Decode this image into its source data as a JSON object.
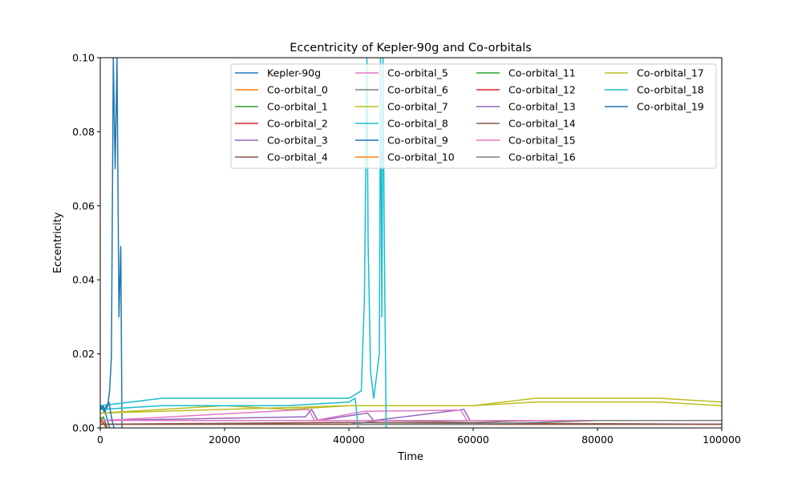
{
  "chart_data": {
    "type": "line",
    "title": "Eccentricity of Kepler-90g and Co-orbitals",
    "xlabel": "Time",
    "ylabel": "Eccentricity",
    "xlim": [
      0,
      100000
    ],
    "ylim": [
      0,
      0.1
    ],
    "xticks": [
      0,
      20000,
      40000,
      60000,
      80000,
      100000
    ],
    "xtick_labels": [
      "0",
      "20000",
      "40000",
      "60000",
      "80000",
      "100000"
    ],
    "yticks": [
      0,
      0.02,
      0.04,
      0.06,
      0.08,
      0.1
    ],
    "ytick_labels": [
      "0.00",
      "0.02",
      "0.04",
      "0.06",
      "0.08",
      "0.10"
    ],
    "grid": false,
    "legend_position": "top-right",
    "legend_columns": 4,
    "series": [
      {
        "name": "Kepler-90g",
        "color": "#1f77b4",
        "values": [
          [
            0,
            0.005
          ],
          [
            300,
            0.0055
          ],
          [
            700,
            0.004
          ],
          [
            1200,
            0.006
          ],
          [
            1500,
            0.01
          ],
          [
            1800,
            0.019
          ],
          [
            2100,
            0.1
          ],
          [
            2400,
            0.07
          ],
          [
            2700,
            0.1
          ],
          [
            3000,
            0.03
          ],
          [
            3300,
            0.049
          ],
          [
            3500,
            0.0
          ]
        ]
      },
      {
        "name": "Co-orbital_0",
        "color": "#ff7f0e",
        "values": [
          [
            0,
            0.003
          ],
          [
            400,
            0.002
          ],
          [
            800,
            0.001
          ],
          [
            1000,
            0.0
          ]
        ]
      },
      {
        "name": "Co-orbital_1",
        "color": "#2ca02c",
        "values": [
          [
            0,
            0.002
          ],
          [
            500,
            0.003
          ],
          [
            900,
            0.001
          ],
          [
            1100,
            0.0
          ]
        ]
      },
      {
        "name": "Co-orbital_2",
        "color": "#d62728",
        "values": [
          [
            0,
            0.002
          ],
          [
            600,
            0.001
          ],
          [
            1000,
            0.0
          ]
        ]
      },
      {
        "name": "Co-orbital_3",
        "color": "#9467bd",
        "values": [
          [
            0,
            0.002
          ],
          [
            33000,
            0.003
          ],
          [
            34000,
            0.005
          ],
          [
            35000,
            0.002
          ],
          [
            43000,
            0.004
          ],
          [
            44000,
            0.002
          ],
          [
            58500,
            0.005
          ],
          [
            59500,
            0.002
          ]
        ]
      },
      {
        "name": "Co-orbital_4",
        "color": "#8c564b",
        "values": [
          [
            0,
            0.001
          ],
          [
            40000,
            0.0015
          ],
          [
            100000,
            0.001
          ]
        ]
      },
      {
        "name": "Co-orbital_5",
        "color": "#e377c2",
        "values": [
          [
            0,
            0.002
          ],
          [
            33500,
            0.005
          ],
          [
            34500,
            0.002
          ],
          [
            42500,
            0.0045
          ],
          [
            58000,
            0.0048
          ],
          [
            59000,
            0.002
          ],
          [
            100000,
            0.002
          ]
        ]
      },
      {
        "name": "Co-orbital_6",
        "color": "#7f7f7f",
        "values": [
          [
            40000,
            0.001
          ],
          [
            45000,
            0.002
          ],
          [
            60000,
            0.0015
          ],
          [
            70000,
            0.002
          ],
          [
            80000,
            0.002
          ],
          [
            90000,
            0.002
          ],
          [
            100000,
            0.002
          ]
        ]
      },
      {
        "name": "Co-orbital_7",
        "color": "#bcbd22",
        "values": [
          [
            0,
            0.004
          ],
          [
            10000,
            0.005
          ],
          [
            20000,
            0.006
          ],
          [
            30000,
            0.005
          ],
          [
            40000,
            0.006
          ],
          [
            50000,
            0.006
          ],
          [
            60000,
            0.006
          ],
          [
            70000,
            0.007
          ],
          [
            80000,
            0.007
          ],
          [
            90000,
            0.007
          ],
          [
            100000,
            0.006
          ]
        ]
      },
      {
        "name": "Co-orbital_8",
        "color": "#17becf",
        "values": [
          [
            0,
            0.005
          ],
          [
            10000,
            0.006
          ],
          [
            20000,
            0.006
          ],
          [
            30000,
            0.006
          ],
          [
            40000,
            0.007
          ],
          [
            41000,
            0.008
          ],
          [
            41500,
            0.0
          ]
        ]
      },
      {
        "name": "Co-orbital_9",
        "color": "#1f77b4",
        "values": [
          [
            0,
            0.005
          ],
          [
            500,
            0.006
          ],
          [
            1000,
            0.003
          ],
          [
            1500,
            0.0
          ]
        ]
      },
      {
        "name": "Co-orbital_10",
        "color": "#ff7f0e",
        "values": [
          [
            0,
            0.001
          ],
          [
            100000,
            0.001
          ]
        ]
      },
      {
        "name": "Co-orbital_11",
        "color": "#2ca02c",
        "values": [
          [
            0,
            0.001
          ],
          [
            100000,
            0.001
          ]
        ]
      },
      {
        "name": "Co-orbital_12",
        "color": "#d62728",
        "values": [
          [
            0,
            0.001
          ],
          [
            100000,
            0.001
          ]
        ]
      },
      {
        "name": "Co-orbital_13",
        "color": "#9467bd",
        "values": [
          [
            0,
            0.001
          ],
          [
            100000,
            0.001
          ]
        ]
      },
      {
        "name": "Co-orbital_14",
        "color": "#8c564b",
        "values": [
          [
            0,
            0.001
          ],
          [
            100000,
            0.001
          ]
        ]
      },
      {
        "name": "Co-orbital_15",
        "color": "#e377c2",
        "values": [
          [
            0,
            0.002
          ],
          [
            100000,
            0.002
          ]
        ]
      },
      {
        "name": "Co-orbital_16",
        "color": "#7f7f7f",
        "values": [
          [
            40000,
            0.001
          ],
          [
            60000,
            0.001
          ],
          [
            80000,
            0.002
          ],
          [
            100000,
            0.002
          ]
        ]
      },
      {
        "name": "Co-orbital_17",
        "color": "#bcbd22",
        "values": [
          [
            0,
            0.004
          ],
          [
            20000,
            0.005
          ],
          [
            40000,
            0.006
          ],
          [
            42000,
            0.006
          ],
          [
            50000,
            0.006
          ],
          [
            60000,
            0.006
          ],
          [
            70000,
            0.008
          ],
          [
            80000,
            0.008
          ],
          [
            90000,
            0.008
          ],
          [
            100000,
            0.007
          ]
        ]
      },
      {
        "name": "Co-orbital_18",
        "color": "#17becf",
        "values": [
          [
            0,
            0.006
          ],
          [
            10000,
            0.008
          ],
          [
            20000,
            0.008
          ],
          [
            30000,
            0.008
          ],
          [
            40000,
            0.008
          ],
          [
            42000,
            0.01
          ],
          [
            42500,
            0.035
          ],
          [
            42900,
            0.1
          ],
          [
            43100,
            0.05
          ],
          [
            43500,
            0.015
          ],
          [
            44000,
            0.008
          ],
          [
            44900,
            0.02
          ],
          [
            45100,
            0.1
          ],
          [
            45300,
            0.03
          ],
          [
            45500,
            0.1
          ],
          [
            45700,
            0.05
          ],
          [
            46000,
            0.0
          ]
        ]
      },
      {
        "name": "Co-orbital_19",
        "color": "#1f77b4",
        "values": [
          [
            0,
            0.006
          ],
          [
            700,
            0.005
          ],
          [
            1400,
            0.007
          ],
          [
            1900,
            0.002
          ],
          [
            2200,
            0.0
          ]
        ]
      }
    ]
  }
}
